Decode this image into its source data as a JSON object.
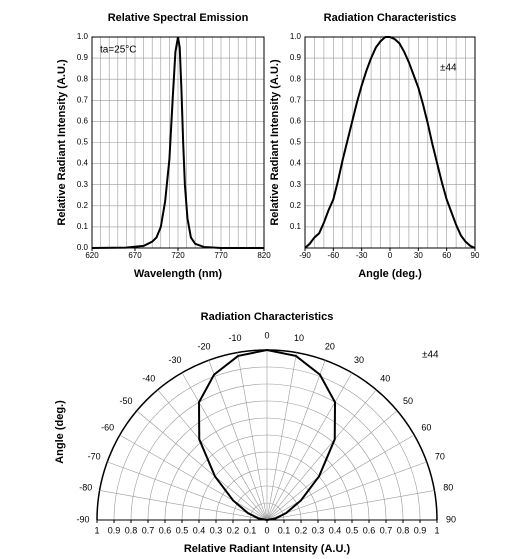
{
  "chart_data": [
    {
      "type": "line",
      "title": "Relative Spectral Emission",
      "xlabel": "Wavelength (nm)",
      "ylabel": "Relative Radiant Intensity (A.U.)",
      "annotation": "ta=25°C",
      "x": [
        620,
        660,
        680,
        690,
        695,
        700,
        705,
        710,
        714,
        717,
        720,
        722,
        724,
        726,
        728,
        731,
        735,
        740,
        750,
        770,
        820
      ],
      "series": [
        {
          "color": "#000000",
          "values": [
            0,
            0.002,
            0.01,
            0.03,
            0.05,
            0.1,
            0.22,
            0.42,
            0.72,
            0.93,
            1.0,
            0.95,
            0.75,
            0.5,
            0.3,
            0.14,
            0.05,
            0.02,
            0.005,
            0,
            0
          ]
        }
      ],
      "xlim": [
        620,
        820
      ],
      "ylim": [
        0,
        1
      ],
      "xticks": [
        620,
        670,
        720,
        770,
        820
      ],
      "yticks": [
        {
          "value": 0,
          "label": "0.0"
        },
        0.1,
        0.2,
        0.3,
        0.4,
        0.5,
        0.6,
        0.7,
        0.8,
        0.9,
        {
          "value": 1,
          "label": "1.0"
        }
      ],
      "x_minor_step": 10,
      "grid": true
    },
    {
      "type": "line",
      "title": "Radiation Characteristics",
      "xlabel": "Angle (deg.)",
      "ylabel": "Relative Radiant Intensity (A.U.)",
      "annotation": "±44",
      "x": [
        -90,
        -85,
        -80,
        -75,
        -70,
        -65,
        -60,
        -55,
        -50,
        -45,
        -40,
        -35,
        -30,
        -25,
        -20,
        -15,
        -10,
        -5,
        0,
        5,
        10,
        15,
        20,
        25,
        30,
        35,
        40,
        45,
        50,
        55,
        60,
        65,
        70,
        75,
        80,
        85,
        90
      ],
      "series": [
        {
          "color": "#000000",
          "values": [
            0,
            0.02,
            0.05,
            0.07,
            0.12,
            0.18,
            0.23,
            0.32,
            0.42,
            0.51,
            0.6,
            0.69,
            0.77,
            0.84,
            0.9,
            0.95,
            0.98,
            1.0,
            1.0,
            0.99,
            0.97,
            0.93,
            0.88,
            0.82,
            0.76,
            0.68,
            0.59,
            0.49,
            0.4,
            0.31,
            0.23,
            0.17,
            0.11,
            0.06,
            0.03,
            0.01,
            0
          ]
        }
      ],
      "xlim": [
        -90,
        90
      ],
      "ylim": [
        0,
        1
      ],
      "xticks": [
        -90,
        -60,
        -30,
        0,
        30,
        60,
        90
      ],
      "yticks": [
        0.1,
        0.2,
        0.3,
        0.4,
        0.5,
        0.6,
        0.7,
        0.8,
        0.9,
        {
          "value": 1,
          "label": "1.0"
        }
      ],
      "x_minor_step": 10,
      "grid": true
    },
    {
      "type": "polar",
      "title": "Radiation Characteristics",
      "theta_label": "Angle (deg.)",
      "r_label": "Relative Radiant Intensity (A.U.)",
      "annotation": "±44",
      "theta": [
        -90,
        -80,
        -70,
        -60,
        -50,
        -40,
        -30,
        -20,
        -10,
        0,
        10,
        20,
        30,
        40,
        50,
        60,
        70,
        80,
        90
      ],
      "r": [
        0,
        0.05,
        0.12,
        0.23,
        0.4,
        0.62,
        0.8,
        0.91,
        0.98,
        1.0,
        0.98,
        0.91,
        0.8,
        0.62,
        0.4,
        0.23,
        0.12,
        0.05,
        0
      ],
      "color": "#000000",
      "thetalim": [
        -90,
        90
      ],
      "thetaticks": [
        -90,
        -80,
        -70,
        -60,
        -50,
        -40,
        -30,
        -20,
        -10,
        0,
        10,
        20,
        30,
        40,
        50,
        60,
        70,
        80,
        90
      ],
      "rlim": [
        0,
        1
      ],
      "rticks": [
        0,
        0.1,
        0.2,
        0.3,
        0.4,
        0.5,
        0.6,
        0.7,
        0.8,
        0.9,
        1
      ],
      "grid": true
    }
  ]
}
